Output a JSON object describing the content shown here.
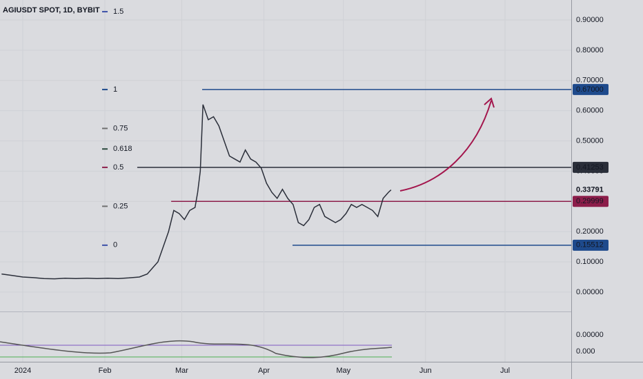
{
  "chart_data": {
    "type": "line",
    "title": "AGIUSDT SPOT, 1D, BYBIT",
    "x": [
      -8,
      -4,
      0,
      4,
      8,
      12,
      16,
      20,
      24,
      28,
      32,
      36,
      40,
      44,
      47,
      49,
      51,
      53,
      55,
      57,
      59,
      61,
      63,
      65,
      66,
      67,
      68,
      70,
      72,
      74,
      76,
      78,
      80,
      82,
      84,
      86,
      88,
      90,
      92,
      94,
      96,
      98,
      100,
      102,
      104,
      106,
      108,
      110,
      112,
      114,
      116,
      118,
      120,
      122,
      124,
      126,
      128,
      130,
      132,
      134,
      136,
      138,
      139
    ],
    "values": [
      0.06,
      0.055,
      0.05,
      0.048,
      0.045,
      0.044,
      0.046,
      0.045,
      0.046,
      0.045,
      0.046,
      0.045,
      0.047,
      0.05,
      0.06,
      0.08,
      0.1,
      0.15,
      0.2,
      0.27,
      0.26,
      0.24,
      0.27,
      0.28,
      0.33,
      0.4,
      0.62,
      0.57,
      0.58,
      0.55,
      0.5,
      0.45,
      0.44,
      0.43,
      0.47,
      0.44,
      0.43,
      0.41,
      0.36,
      0.33,
      0.31,
      0.34,
      0.31,
      0.29,
      0.23,
      0.22,
      0.24,
      0.28,
      0.29,
      0.25,
      0.24,
      0.23,
      0.24,
      0.26,
      0.29,
      0.28,
      0.29,
      0.28,
      0.27,
      0.25,
      0.31,
      0.33,
      0.338
    ],
    "color": "#2a2e39",
    "xlim": [
      -8.6,
      207
    ],
    "xticks": [
      {
        "value": 0,
        "label": "2024"
      },
      {
        "value": 31,
        "label": "Feb"
      },
      {
        "value": 60,
        "label": "Mar"
      },
      {
        "value": 91,
        "label": "Apr"
      },
      {
        "value": 121,
        "label": "May"
      },
      {
        "value": 152,
        "label": "Jun"
      },
      {
        "value": 182,
        "label": "Jul"
      }
    ],
    "ylim": [
      -0.064,
      0.966
    ],
    "yticks": [
      {
        "value": 0,
        "label": "0.00000"
      },
      {
        "value": 0.1,
        "label": "0.10000"
      },
      {
        "value": 0.2,
        "label": "0.20000"
      },
      {
        "value": 0.3,
        "label": "0.30000"
      },
      {
        "value": 0.4,
        "label": "0.40000"
      },
      {
        "value": 0.5,
        "label": "0.50000"
      },
      {
        "value": 0.6,
        "label": "0.60000"
      },
      {
        "value": 0.7,
        "label": "0.70000"
      },
      {
        "value": 0.8,
        "label": "0.80000"
      },
      {
        "value": 0.9,
        "label": "0.90000"
      }
    ],
    "grid": true,
    "levels": [
      {
        "value": 0.67,
        "label": "0.67000",
        "color": "#1e4a8c",
        "start": 67.7
      },
      {
        "value": 0.41253,
        "label": "0.41253",
        "color": "#2a2e39",
        "start": 43.2
      },
      {
        "value": 0.29999,
        "label": "0.29999",
        "color": "#8c1d4a",
        "start": 56
      },
      {
        "value": 0.15512,
        "label": "0.15512",
        "color": "#1e4a8c",
        "start": 101.8
      }
    ],
    "last_price": {
      "value": 0.33791,
      "label": "0.33791"
    },
    "fib": {
      "low": 0.15512,
      "high": 0.67,
      "levels": [
        1.5,
        1,
        0.75,
        0.618,
        0.5,
        0.25,
        0
      ],
      "colors": [
        "#3b4fa8",
        "#1e4a8c",
        "#707070",
        "#2c4a3e",
        "#8c1d4a",
        "#707070",
        "#3b4fa8"
      ]
    },
    "indicator_labels": [
      "0.00000",
      "0.000"
    ]
  }
}
